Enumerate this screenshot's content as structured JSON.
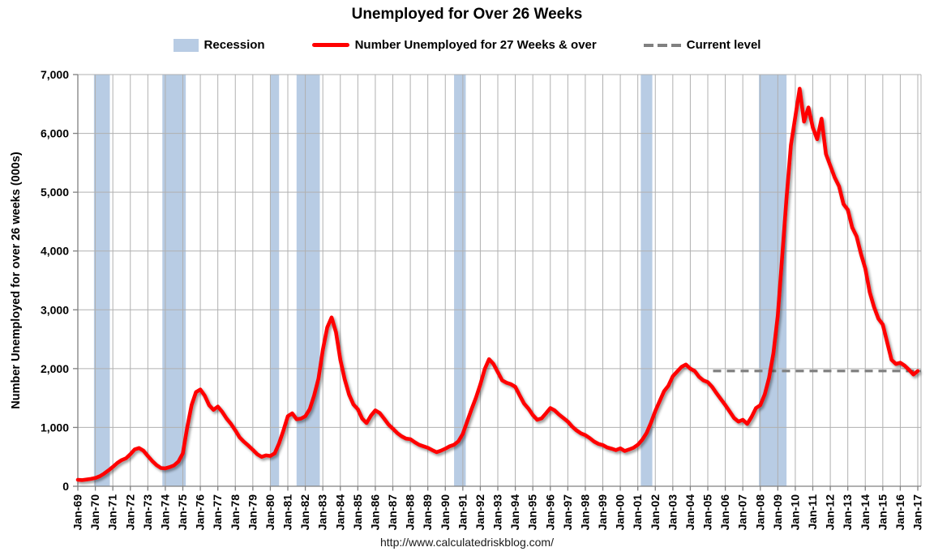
{
  "title": "Unemployed for Over 26 Weeks",
  "footer": {
    "url": "http://www.calculatedriskblog.com/"
  },
  "legend": [
    {
      "label": "Recession",
      "color": "#B8CCE4"
    },
    {
      "label": "Number Unemployed for 27 Weeks & over",
      "color": "#FF0000"
    },
    {
      "label": "Current level",
      "color": "#808080"
    }
  ],
  "chart_data": {
    "type": "line",
    "title": "Unemployed for Over 26 Weeks",
    "xlabel": "",
    "ylabel": "Number Unemployed for over 26 weeks (000s)",
    "x_range": [
      1969,
      2017.185
    ],
    "ylim": [
      0,
      7000
    ],
    "grid": true,
    "grid_color": "#B0B0B0",
    "axis_color": "#808080",
    "y_ticks": [
      0,
      1000,
      2000,
      3000,
      4000,
      5000,
      6000,
      7000
    ],
    "y_tick_labels": [
      "0",
      "1,000",
      "2,000",
      "3,000",
      "4,000",
      "5,000",
      "6,000",
      "7,000"
    ],
    "x_tick_years": [
      1969,
      1970,
      1971,
      1972,
      1973,
      1974,
      1975,
      1976,
      1977,
      1978,
      1979,
      1980,
      1981,
      1982,
      1983,
      1984,
      1985,
      1986,
      1987,
      1988,
      1989,
      1990,
      1991,
      1992,
      1993,
      1994,
      1995,
      1996,
      1997,
      1998,
      1999,
      2000,
      2001,
      2002,
      2003,
      2004,
      2005,
      2006,
      2007,
      2008,
      2009,
      2010,
      2011,
      2012,
      2013,
      2014,
      2015,
      2016,
      2017
    ],
    "x_tick_labels": [
      "Jan-69",
      "Jan-70",
      "Jan-71",
      "Jan-72",
      "Jan-73",
      "Jan-74",
      "Jan-75",
      "Jan-76",
      "Jan-77",
      "Jan-78",
      "Jan-79",
      "Jan-80",
      "Jan-81",
      "Jan-82",
      "Jan-83",
      "Jan-84",
      "Jan-85",
      "Jan-86",
      "Jan-87",
      "Jan-88",
      "Jan-89",
      "Jan-90",
      "Jan-91",
      "Jan-92",
      "Jan-93",
      "Jan-94",
      "Jan-95",
      "Jan-96",
      "Jan-97",
      "Jan-98",
      "Jan-99",
      "Jan-00",
      "Jan-01",
      "Jan-02",
      "Jan-03",
      "Jan-04",
      "Jan-05",
      "Jan-06",
      "Jan-07",
      "Jan-08",
      "Jan-09",
      "Jan-10",
      "Jan-11",
      "Jan-12",
      "Jan-13",
      "Jan-14",
      "Jan-15",
      "Jan-16",
      "Jan-17"
    ],
    "series": [
      {
        "name": "Number Unemployed for 27 Weeks & over",
        "color": "#FF0000",
        "start_year": 1969,
        "step_years": 0.25,
        "values": [
          110,
          105,
          115,
          125,
          140,
          170,
          215,
          270,
          330,
          395,
          445,
          475,
          545,
          625,
          650,
          605,
          515,
          430,
          360,
          310,
          305,
          325,
          355,
          420,
          560,
          1000,
          1380,
          1600,
          1645,
          1540,
          1380,
          1300,
          1355,
          1265,
          1150,
          1060,
          950,
          830,
          755,
          690,
          620,
          545,
          500,
          525,
          515,
          560,
          730,
          950,
          1190,
          1240,
          1140,
          1150,
          1190,
          1310,
          1540,
          1830,
          2320,
          2700,
          2870,
          2620,
          2150,
          1820,
          1560,
          1390,
          1310,
          1150,
          1075,
          1200,
          1290,
          1245,
          1150,
          1050,
          980,
          905,
          850,
          810,
          800,
          750,
          705,
          680,
          655,
          615,
          580,
          605,
          640,
          680,
          705,
          765,
          890,
          1100,
          1310,
          1505,
          1730,
          1990,
          2160,
          2080,
          1940,
          1800,
          1760,
          1735,
          1690,
          1545,
          1405,
          1320,
          1210,
          1130,
          1155,
          1240,
          1330,
          1290,
          1220,
          1160,
          1100,
          1015,
          950,
          900,
          870,
          820,
          760,
          720,
          700,
          660,
          640,
          615,
          645,
          600,
          625,
          655,
          705,
          790,
          905,
          1080,
          1280,
          1450,
          1615,
          1710,
          1870,
          1950,
          2030,
          2070,
          2000,
          1960,
          1860,
          1800,
          1770,
          1690,
          1580,
          1480,
          1380,
          1270,
          1160,
          1100,
          1130,
          1060,
          1180,
          1330,
          1380,
          1560,
          1840,
          2260,
          2900,
          3900,
          4900,
          5800,
          6280,
          6760,
          6200,
          6440,
          6100,
          5900,
          6250,
          5650,
          5450,
          5250,
          5100,
          4800,
          4700,
          4400,
          4250,
          3950,
          3700,
          3300,
          3050,
          2850,
          2750,
          2450,
          2150,
          2080,
          2100,
          2050,
          1980,
          1900,
          1960
        ]
      }
    ],
    "current_level": {
      "label": "Current level",
      "value": 1960,
      "x_start": 2005.3,
      "x_end": 2017.185,
      "color": "#808080"
    },
    "recession_bands": {
      "color": "#B8CCE4",
      "intervals": [
        [
          1969.92,
          1970.83
        ],
        [
          1973.83,
          1975.17
        ],
        [
          1980.0,
          1980.5
        ],
        [
          1981.5,
          1982.83
        ],
        [
          1990.5,
          1991.17
        ],
        [
          2001.17,
          2001.83
        ],
        [
          2007.92,
          2009.5
        ]
      ]
    }
  }
}
